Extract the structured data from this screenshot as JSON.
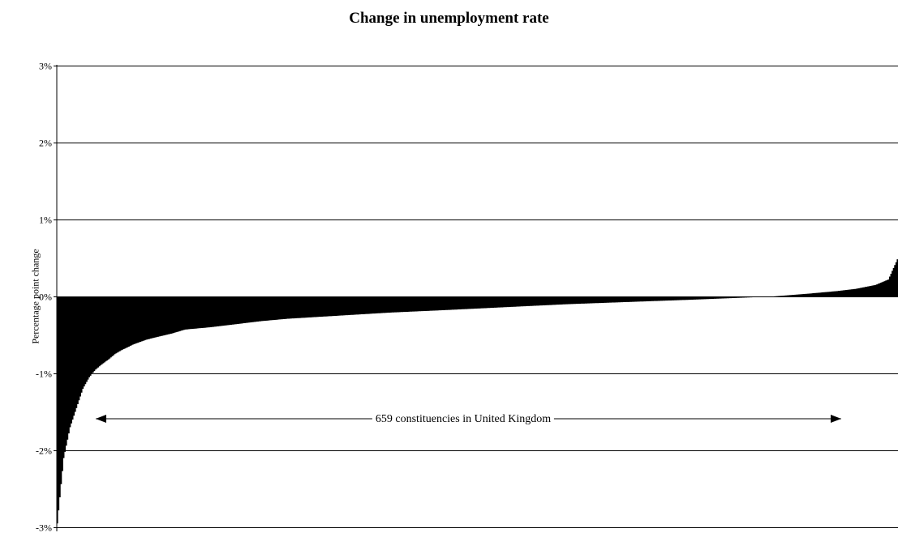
{
  "chart_data": {
    "type": "area",
    "title": "Change in unemployment rate",
    "xlabel": "",
    "ylabel": "Percentage point change",
    "ylim": [
      -3,
      3
    ],
    "yticks": [
      3,
      2,
      1,
      0,
      -1,
      -2,
      -3
    ],
    "ytick_labels": [
      "3%",
      "2%",
      "1%",
      "0%",
      "-1%",
      "-2%",
      "-3%"
    ],
    "grid": true,
    "n_points": 659,
    "x": [
      0,
      5,
      10,
      15,
      20,
      25,
      30,
      35,
      40,
      45,
      50,
      55,
      60,
      70,
      80,
      90,
      100,
      120,
      140,
      160,
      180,
      200,
      230,
      260,
      300,
      350,
      400,
      450,
      500,
      530,
      560,
      575,
      590,
      610,
      625,
      640,
      650,
      658
    ],
    "y": [
      -2.95,
      -2.1,
      -1.7,
      -1.45,
      -1.2,
      -1.05,
      -0.95,
      -0.88,
      -0.82,
      -0.75,
      -0.7,
      -0.66,
      -0.62,
      -0.56,
      -0.52,
      -0.48,
      -0.43,
      -0.4,
      -0.36,
      -0.32,
      -0.29,
      -0.27,
      -0.24,
      -0.21,
      -0.18,
      -0.14,
      -0.1,
      -0.07,
      -0.04,
      -0.02,
      0.0,
      0.02,
      0.04,
      0.07,
      0.1,
      0.15,
      0.22,
      0.52
    ],
    "annotation": "659 constituencies in United Kingdom"
  }
}
